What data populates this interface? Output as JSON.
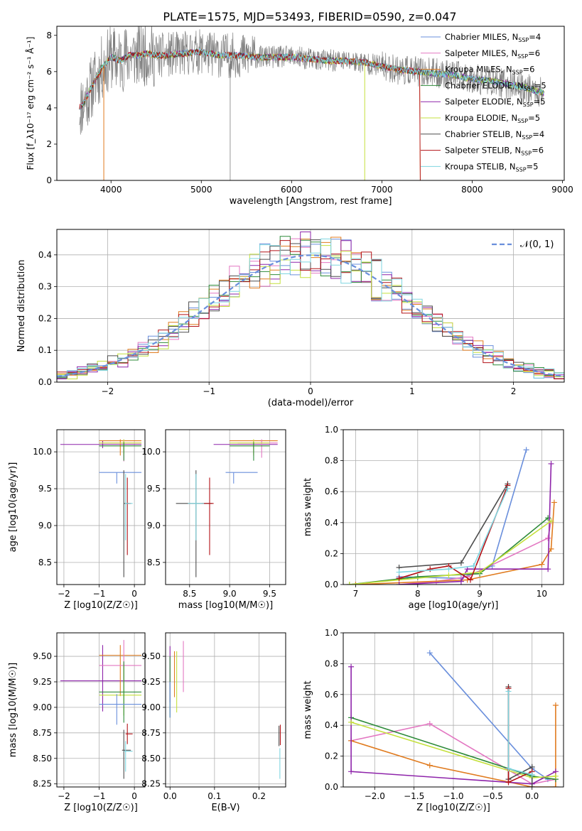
{
  "title": "PLATE=1575, MJD=53493, FIBERID=0590, z=0.047",
  "colors": {
    "chabrier_miles": "#6a8fdc",
    "salpeter_miles": "#e377c2",
    "kroupa_miles": "#e07b1f",
    "chabrier_elodie": "#2e8b3a",
    "salpeter_elodie": "#8e24aa",
    "kroupa_elodie": "#c4e03c",
    "chabrier_stelib": "#4d4d4d",
    "salpeter_stelib": "#b31217",
    "kroupa_stelib": "#7fd6e0",
    "data": "#7f7f7f",
    "normal": "#6a8fdc"
  },
  "chart_data": [
    {
      "panel": "spectrum",
      "type": "line",
      "xlabel": "wavelength [Angstrom, rest frame]",
      "ylabel": "Flux [f_λ10⁻¹⁷ erg cm⁻² s⁻¹ Å⁻¹]",
      "xlim": [
        3400,
        9020
      ],
      "ylim": [
        0,
        8.5
      ],
      "xticks": [
        "4000",
        "5000",
        "6000",
        "7000",
        "8000",
        "9000"
      ],
      "yticks": [
        "0",
        "2",
        "4",
        "6",
        "8"
      ],
      "legend_position": "upper-right",
      "legend": [
        {
          "label": "Chabrier MILES, N",
          "sub": "SSP",
          "value": "=4"
        },
        {
          "label": "Salpeter MILES, N",
          "sub": "SSP",
          "value": "=6"
        },
        {
          "label": "Kroupa MILES, N",
          "sub": "SSP",
          "value": "=6"
        },
        {
          "label": "Chabrier ELODIE, N",
          "sub": "SSP",
          "value": "=5"
        },
        {
          "label": "Salpeter ELODIE, N",
          "sub": "SSP",
          "value": "=5"
        },
        {
          "label": "Kroupa ELODIE, N",
          "sub": "SSP",
          "value": "=5"
        },
        {
          "label": "Chabrier STELIB, N",
          "sub": "SSP",
          "value": "=4"
        },
        {
          "label": "Salpeter STELIB, N",
          "sub": "SSP",
          "value": "=6"
        },
        {
          "label": "Kroupa STELIB, N",
          "sub": "SSP",
          "value": "=5"
        }
      ],
      "continuum": {
        "x": [
          3650,
          3700,
          3800,
          3900,
          4000,
          4100,
          4200,
          4300,
          4400,
          4500,
          4600,
          4800,
          5000,
          5200,
          5400,
          5600,
          5800,
          6000,
          6200,
          6400,
          6600,
          6800,
          7000,
          7200,
          7400,
          7600,
          7800,
          8000,
          8200,
          8400,
          8600,
          8800
        ],
        "y": [
          4.0,
          4.3,
          5.3,
          6.2,
          6.8,
          6.6,
          6.9,
          6.9,
          7.0,
          6.9,
          6.9,
          7.0,
          7.1,
          6.9,
          6.9,
          6.8,
          6.8,
          6.8,
          6.7,
          6.6,
          6.6,
          6.5,
          6.3,
          6.1,
          6.0,
          5.9,
          5.8,
          5.6,
          5.5,
          5.3,
          5.1,
          4.8
        ]
      }
    },
    {
      "panel": "residuals",
      "type": "histogram",
      "xlabel": "(data-model)/error",
      "ylabel": "Normed distribution",
      "xlim": [
        -2.5,
        2.5
      ],
      "ylim": [
        0,
        0.48
      ],
      "xticks": [
        "−2",
        "−1",
        "0",
        "1",
        "2"
      ],
      "yticks": [
        "0.0",
        "0.1",
        "0.2",
        "0.3",
        "0.4"
      ],
      "legend": [
        "𝒩(0, 1)"
      ],
      "legend_position": "upper-right",
      "bin_width": 0.1
    },
    {
      "panel": "age_vs_Z",
      "type": "scatter",
      "xlabel": "Z [log10(Z/Z☉)]",
      "ylabel": "age [log10(age/yr)]",
      "xlim": [
        -2.2,
        0.3
      ],
      "ylim": [
        8.2,
        10.3
      ],
      "xticks": [
        "−2",
        "−1",
        "0"
      ],
      "yticks": [
        "8.5",
        "9.0",
        "9.5",
        "10.0"
      ]
    },
    {
      "panel": "age_vs_mass",
      "type": "scatter",
      "xlabel": "mass [log10(M/M☉)]",
      "xlim": [
        8.2,
        9.7
      ],
      "ylim": [
        8.2,
        10.3
      ],
      "xticks": [
        "8.5",
        "9.0",
        "9.5"
      ],
      "yticks": [
        "8.5",
        "9.0",
        "9.5",
        "10.0"
      ]
    },
    {
      "panel": "weight_vs_age",
      "type": "line",
      "xlabel": "age [log10(age/yr)]",
      "ylabel": "mass weight",
      "xlim": [
        6.8,
        10.35
      ],
      "ylim": [
        0,
        1.0
      ],
      "xticks": [
        "7",
        "8",
        "9",
        "10"
      ],
      "yticks": [
        "0.0",
        "0.2",
        "0.4",
        "0.6",
        "0.8",
        "1.0"
      ],
      "series": [
        {
          "key": "chabrier_miles",
          "x": [
            7.7,
            8.7,
            9.2,
            9.75
          ],
          "y": [
            0.05,
            0.04,
            0.12,
            0.87
          ]
        },
        {
          "key": "salpeter_miles",
          "x": [
            7.7,
            8.3,
            8.8,
            10.1,
            10.15
          ],
          "y": [
            0.0,
            0.02,
            0.05,
            0.3,
            0.41
          ]
        },
        {
          "key": "kroupa_miles",
          "x": [
            7.0,
            8.8,
            10.0,
            10.15,
            10.2
          ],
          "y": [
            0.0,
            0.03,
            0.13,
            0.23,
            0.53
          ]
        },
        {
          "key": "chabrier_elodie",
          "x": [
            6.9,
            8.0,
            9.0,
            10.1
          ],
          "y": [
            0.0,
            0.05,
            0.07,
            0.43
          ]
        },
        {
          "key": "salpeter_elodie",
          "x": [
            7.7,
            8.7,
            8.8,
            10.1,
            10.15
          ],
          "y": [
            0.0,
            0.02,
            0.1,
            0.1,
            0.78
          ]
        },
        {
          "key": "kroupa_elodie",
          "x": [
            6.9,
            8.5,
            9.0,
            10.15
          ],
          "y": [
            0.0,
            0.06,
            0.08,
            0.41
          ]
        },
        {
          "key": "chabrier_stelib",
          "x": [
            7.7,
            8.7,
            9.45
          ],
          "y": [
            0.11,
            0.14,
            0.65
          ]
        },
        {
          "key": "salpeter_stelib",
          "x": [
            7.7,
            8.2,
            8.5,
            8.85,
            9.45
          ],
          "y": [
            0.04,
            0.1,
            0.12,
            0.03,
            0.64
          ]
        },
        {
          "key": "kroupa_stelib",
          "x": [
            7.7,
            8.5,
            8.9,
            9.45
          ],
          "y": [
            0.08,
            0.1,
            0.12,
            0.62
          ]
        }
      ]
    },
    {
      "panel": "mass_vs_Z",
      "type": "scatter",
      "xlabel": "Z [log10(Z/Z☉)]",
      "ylabel": "mass [log10(M/M☉)]",
      "xlim": [
        -2.2,
        0.3
      ],
      "ylim": [
        8.22,
        9.73
      ],
      "xticks": [
        "−2",
        "−1",
        "0"
      ],
      "yticks": [
        "8.25",
        "8.50",
        "8.75",
        "9.00",
        "9.25",
        "9.50"
      ]
    },
    {
      "panel": "mass_vs_ebv",
      "type": "scatter",
      "xlabel": "E(B-V)",
      "xlim": [
        -0.01,
        0.26
      ],
      "ylim": [
        8.22,
        9.73
      ],
      "xticks": [
        "0.0",
        "0.1",
        "0.2"
      ],
      "yticks": [
        "8.25",
        "8.50",
        "8.75",
        "9.00",
        "9.25",
        "9.50"
      ]
    },
    {
      "panel": "weight_vs_Z",
      "type": "line",
      "xlabel": "Z [log10(Z/Z☉)]",
      "ylabel": "mass weight",
      "xlim": [
        -2.4,
        0.4
      ],
      "ylim": [
        0,
        1.0
      ],
      "xticks": [
        "−2.0",
        "−1.5",
        "−1.0",
        "−0.5",
        "0.0"
      ],
      "yticks": [
        "0.0",
        "0.2",
        "0.4",
        "0.6",
        "0.8",
        "1.0"
      ],
      "series": [
        {
          "key": "chabrier_miles",
          "x": [
            -1.3,
            0.0,
            0.2
          ],
          "y": [
            0.87,
            0.12,
            0.05
          ]
        },
        {
          "key": "salpeter_miles",
          "x": [
            -2.3,
            -1.3,
            0.0,
            0.3
          ],
          "y": [
            0.3,
            0.41,
            0.02,
            0.05
          ]
        },
        {
          "key": "kroupa_miles",
          "x": [
            -2.3,
            -1.3,
            0.0,
            0.3,
            0.3
          ],
          "y": [
            0.3,
            0.14,
            0.0,
            0.0,
            0.53
          ]
        },
        {
          "key": "chabrier_elodie",
          "x": [
            -2.3,
            0.0,
            0.3
          ],
          "y": [
            0.45,
            0.07,
            0.05
          ]
        },
        {
          "key": "salpeter_elodie",
          "x": [
            -2.3,
            -2.3,
            0.0,
            0.3
          ],
          "y": [
            0.78,
            0.1,
            0.02,
            0.1
          ]
        },
        {
          "key": "kroupa_elodie",
          "x": [
            -2.3,
            0.0,
            0.3
          ],
          "y": [
            0.42,
            0.06,
            0.07
          ]
        },
        {
          "key": "chabrier_stelib",
          "x": [
            -0.3,
            -0.3,
            0.0,
            0.0
          ],
          "y": [
            0.65,
            0.05,
            0.13,
            0.0
          ]
        },
        {
          "key": "salpeter_stelib",
          "x": [
            -0.3,
            -0.3,
            0.0
          ],
          "y": [
            0.64,
            0.03,
            0.1
          ]
        },
        {
          "key": "kroupa_stelib",
          "x": [
            -0.3,
            -0.3,
            0.0
          ],
          "y": [
            0.62,
            0.12,
            0.08
          ]
        }
      ]
    }
  ]
}
